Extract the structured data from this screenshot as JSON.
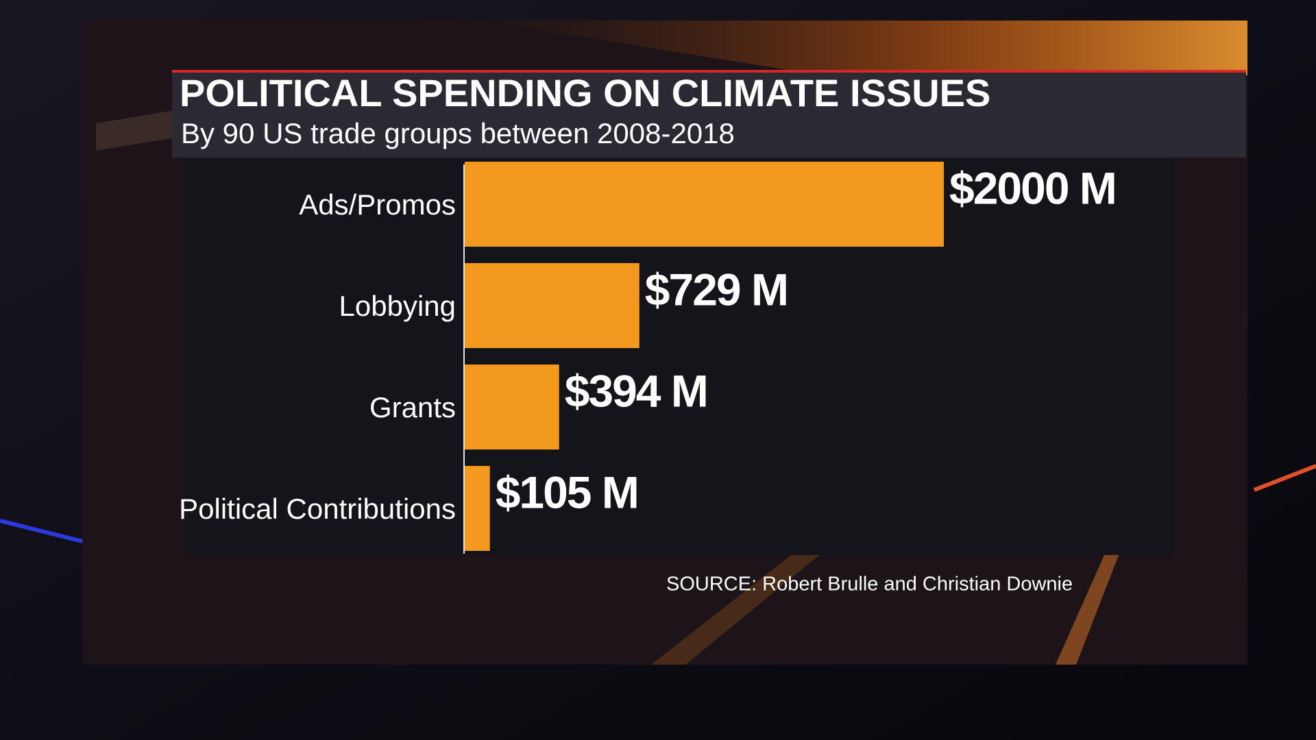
{
  "chart_data": {
    "type": "bar",
    "orientation": "horizontal",
    "title": "POLITICAL SPENDING ON CLIMATE ISSUES",
    "subtitle": "By 90 US trade groups between 2008-2018",
    "categories": [
      "Ads/Promos",
      "Lobbying",
      "Grants",
      "Political Contributions"
    ],
    "values": [
      2000,
      729,
      394,
      105
    ],
    "value_labels": [
      "$2000 M",
      "$729 M",
      "$394 M",
      "$105 M"
    ],
    "color": "#f39a1e",
    "source": "SOURCE: Robert Brulle and Christian Downie"
  }
}
